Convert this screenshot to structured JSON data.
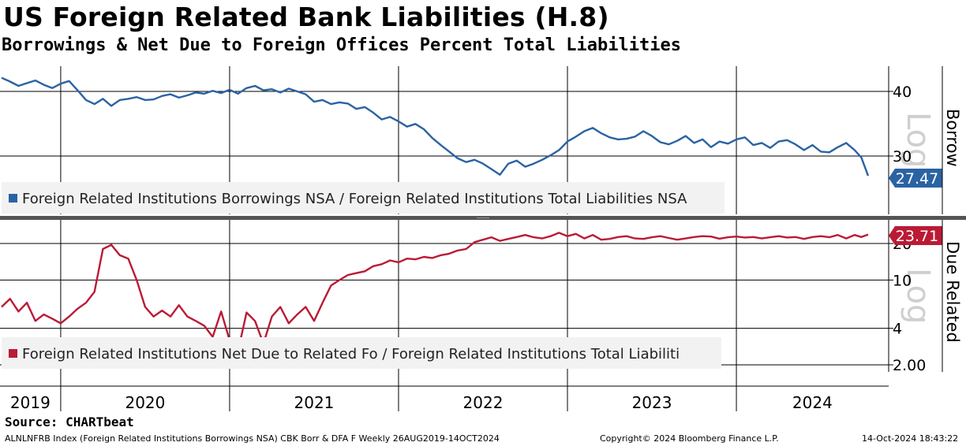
{
  "title": "US Foreign Related Bank Liabilities (H.8)",
  "subtitle": "Borrowings & Net Due to Foreign Offices Percent Total Liabilities",
  "source": "Source: CHARTbeat",
  "footer": {
    "ticker": "ALNLNFRB Index (Foreign Related Institutions Borrowings NSA) CBK Borr & DFA F  Weekly 26AUG2019-14OCT2024",
    "copyright": "Copyright© 2024 Bloomberg Finance L.P.",
    "timestamp": "14-Oct-2024 18:43:22"
  },
  "colors": {
    "borrow": "#2a63a3",
    "due": "#bb1a35",
    "grid": "#000000",
    "divider": "#555555",
    "legend_bg": "#f2f2f2"
  },
  "chart_data": [
    {
      "type": "line",
      "panel": "top",
      "scale": "log",
      "scale_label": "Log",
      "axis_title": "Borrow",
      "yticks": [
        {
          "value": 40,
          "label": "40"
        },
        {
          "value": 30,
          "label": "30"
        }
      ],
      "ylim": [
        25,
        46
      ],
      "legend": "Foreign Related Institutions Borrowings NSA / Foreign Related Institutions Total Liabilities NSA",
      "last_value_label": "27.47",
      "series": {
        "color": "#2a63a3",
        "x": [
          2019.65,
          2019.7,
          2019.75,
          2019.8,
          2019.85,
          2019.9,
          2019.95,
          2020.0,
          2020.05,
          2020.1,
          2020.15,
          2020.2,
          2020.25,
          2020.3,
          2020.35,
          2020.4,
          2020.45,
          2020.5,
          2020.55,
          2020.6,
          2020.65,
          2020.7,
          2020.75,
          2020.8,
          2020.85,
          2020.9,
          2020.95,
          2021.0,
          2021.05,
          2021.1,
          2021.15,
          2021.2,
          2021.25,
          2021.3,
          2021.35,
          2021.4,
          2021.45,
          2021.5,
          2021.55,
          2021.6,
          2021.65,
          2021.7,
          2021.75,
          2021.8,
          2021.85,
          2021.9,
          2021.95,
          2022.0,
          2022.05,
          2022.1,
          2022.15,
          2022.2,
          2022.25,
          2022.3,
          2022.35,
          2022.4,
          2022.45,
          2022.5,
          2022.55,
          2022.6,
          2022.65,
          2022.7,
          2022.75,
          2022.8,
          2022.85,
          2022.9,
          2022.95,
          2023.0,
          2023.05,
          2023.1,
          2023.15,
          2023.2,
          2023.25,
          2023.3,
          2023.35,
          2023.4,
          2023.45,
          2023.5,
          2023.55,
          2023.6,
          2023.65,
          2023.7,
          2023.75,
          2023.8,
          2023.85,
          2023.9,
          2023.95,
          2024.0,
          2024.05,
          2024.1,
          2024.15,
          2024.2,
          2024.25,
          2024.3,
          2024.35,
          2024.4,
          2024.45,
          2024.5,
          2024.55,
          2024.6,
          2024.65,
          2024.7,
          2024.74,
          2024.78
        ],
        "values": [
          42.5,
          41.8,
          41.0,
          41.5,
          42.0,
          41.2,
          40.6,
          41.4,
          41.9,
          40.2,
          38.5,
          37.8,
          38.7,
          37.5,
          38.5,
          38.7,
          39.0,
          38.5,
          38.6,
          39.2,
          39.5,
          38.9,
          39.3,
          39.8,
          39.6,
          40.1,
          39.7,
          40.3,
          39.6,
          40.6,
          41.0,
          40.2,
          40.4,
          39.8,
          40.5,
          40.0,
          39.5,
          38.2,
          38.5,
          37.8,
          38.1,
          37.9,
          37.0,
          37.3,
          36.4,
          35.3,
          35.7,
          35.0,
          34.2,
          34.6,
          33.8,
          32.5,
          31.5,
          30.6,
          29.7,
          29.2,
          29.5,
          29.0,
          28.3,
          27.6,
          29.0,
          29.4,
          28.6,
          29.0,
          29.5,
          30.1,
          30.8,
          32.0,
          32.7,
          33.5,
          34.0,
          33.2,
          32.6,
          32.3,
          32.4,
          32.7,
          33.5,
          32.8,
          31.9,
          31.6,
          32.1,
          32.8,
          31.8,
          32.3,
          31.2,
          32.0,
          31.7,
          32.3,
          32.6,
          31.5,
          31.8,
          31.1,
          32.0,
          32.2,
          31.6,
          30.8,
          31.5,
          30.6,
          30.5,
          31.2,
          31.8,
          30.8,
          29.8,
          27.47
        ]
      }
    },
    {
      "type": "line",
      "panel": "bottom",
      "scale": "log",
      "scale_label": "Log",
      "axis_title": "Due Related",
      "yticks": [
        {
          "value": 20,
          "label": "20"
        },
        {
          "value": 10,
          "label": "10"
        },
        {
          "value": 4,
          "label": "4"
        },
        {
          "value": 2,
          "label": "2.00"
        }
      ],
      "ylim": [
        1.2,
        28
      ],
      "legend": "Foreign Related Institutions Net Due to Related Fo / Foreign Related Institutions Total Liabiliti",
      "last_value_label": "23.71",
      "series": {
        "color": "#bb1a35",
        "x": [
          2019.65,
          2019.7,
          2019.75,
          2019.8,
          2019.85,
          2019.9,
          2019.95,
          2020.0,
          2020.05,
          2020.1,
          2020.15,
          2020.2,
          2020.25,
          2020.3,
          2020.35,
          2020.4,
          2020.45,
          2020.5,
          2020.55,
          2020.6,
          2020.65,
          2020.7,
          2020.75,
          2020.8,
          2020.85,
          2020.9,
          2020.95,
          2021.0,
          2021.05,
          2021.1,
          2021.15,
          2021.2,
          2021.25,
          2021.3,
          2021.35,
          2021.4,
          2021.45,
          2021.5,
          2021.55,
          2021.6,
          2021.65,
          2021.7,
          2021.75,
          2021.8,
          2021.85,
          2021.9,
          2021.95,
          2022.0,
          2022.05,
          2022.1,
          2022.15,
          2022.2,
          2022.25,
          2022.3,
          2022.35,
          2022.4,
          2022.45,
          2022.5,
          2022.55,
          2022.6,
          2022.65,
          2022.7,
          2022.75,
          2022.8,
          2022.85,
          2022.9,
          2022.95,
          2023.0,
          2023.05,
          2023.1,
          2023.15,
          2023.2,
          2023.25,
          2023.3,
          2023.35,
          2023.4,
          2023.45,
          2023.5,
          2023.55,
          2023.6,
          2023.65,
          2023.7,
          2023.75,
          2023.8,
          2023.85,
          2023.9,
          2023.95,
          2024.0,
          2024.05,
          2024.1,
          2024.15,
          2024.2,
          2024.25,
          2024.3,
          2024.35,
          2024.4,
          2024.45,
          2024.5,
          2024.55,
          2024.6,
          2024.65,
          2024.7,
          2024.74,
          2024.78
        ],
        "values": [
          6.0,
          7.0,
          5.5,
          6.5,
          4.6,
          5.2,
          4.8,
          4.4,
          5.0,
          5.8,
          6.5,
          8.0,
          18.0,
          19.5,
          16.0,
          15.0,
          10.0,
          6.0,
          5.0,
          5.6,
          5.0,
          6.2,
          5.0,
          4.6,
          4.2,
          3.4,
          5.5,
          3.2,
          2.6,
          5.4,
          4.6,
          3.0,
          5.0,
          6.0,
          4.4,
          5.2,
          6.0,
          4.6,
          6.5,
          9.0,
          10.0,
          11.0,
          11.4,
          11.8,
          13.0,
          13.5,
          14.5,
          14.0,
          15.0,
          14.8,
          15.5,
          15.2,
          16.0,
          16.5,
          17.5,
          18.0,
          20.5,
          21.5,
          22.5,
          21.0,
          21.8,
          22.6,
          23.5,
          22.5,
          22.0,
          23.0,
          24.5,
          23.0,
          24.0,
          22.0,
          23.5,
          21.5,
          21.8,
          22.6,
          23.0,
          22.0,
          21.8,
          22.5,
          23.0,
          22.2,
          21.5,
          22.0,
          22.6,
          23.0,
          22.8,
          21.9,
          22.5,
          22.8,
          22.4,
          22.6,
          22.0,
          22.5,
          23.0,
          22.4,
          22.6,
          21.8,
          22.6,
          23.0,
          22.5,
          23.5,
          22.0,
          23.5,
          22.6,
          23.71
        ]
      }
    }
  ],
  "x_axis": {
    "year_labels": [
      "2019",
      "2020",
      "2021",
      "2022",
      "2023",
      "2024"
    ]
  }
}
